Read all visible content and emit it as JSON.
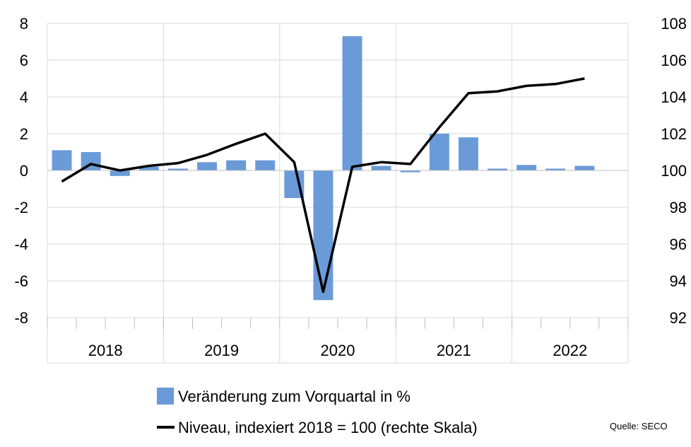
{
  "chart_data": {
    "type": "bar+line",
    "categories": [
      "2018 Q1",
      "2018 Q2",
      "2018 Q3",
      "2018 Q4",
      "2019 Q1",
      "2019 Q2",
      "2019 Q3",
      "2019 Q4",
      "2020 Q1",
      "2020 Q2",
      "2020 Q3",
      "2020 Q4",
      "2021 Q1",
      "2021 Q2",
      "2021 Q3",
      "2021 Q4",
      "2022 Q1",
      "2022 Q2",
      "2022 Q3",
      "2022 Q4"
    ],
    "years": [
      "2018",
      "2019",
      "2020",
      "2021",
      "2022"
    ],
    "series": [
      {
        "name": "Veränderung zum Vorquartal in %",
        "type": "bar",
        "axis": "left",
        "color": "#6a9bd8",
        "values": [
          1.1,
          1.0,
          -0.3,
          0.2,
          0.1,
          0.45,
          0.55,
          0.55,
          -1.5,
          -7.05,
          7.3,
          0.25,
          -0.1,
          2.0,
          1.8,
          0.1,
          0.3,
          0.1,
          0.25,
          null
        ]
      },
      {
        "name": "Niveau, indexiert 2018 = 100 (rechte Skala)",
        "type": "line",
        "axis": "right",
        "color": "#000000",
        "values": [
          99.4,
          100.35,
          100.0,
          100.25,
          100.4,
          100.85,
          101.45,
          102.0,
          100.45,
          93.4,
          100.2,
          100.45,
          100.35,
          102.35,
          104.2,
          104.3,
          104.6,
          104.7,
          105.0,
          null
        ]
      }
    ],
    "y_left": {
      "lim": [
        -8,
        8
      ],
      "ticks": [
        "8",
        "6",
        "4",
        "2",
        "0",
        "-2",
        "-4",
        "-6",
        "-8"
      ]
    },
    "y_right": {
      "lim": [
        92,
        108
      ],
      "ticks": [
        "108",
        "106",
        "104",
        "102",
        "100",
        "98",
        "96",
        "94",
        "92"
      ]
    },
    "grid": true,
    "legend_position": "bottom"
  },
  "source": "Quelle: SECO"
}
